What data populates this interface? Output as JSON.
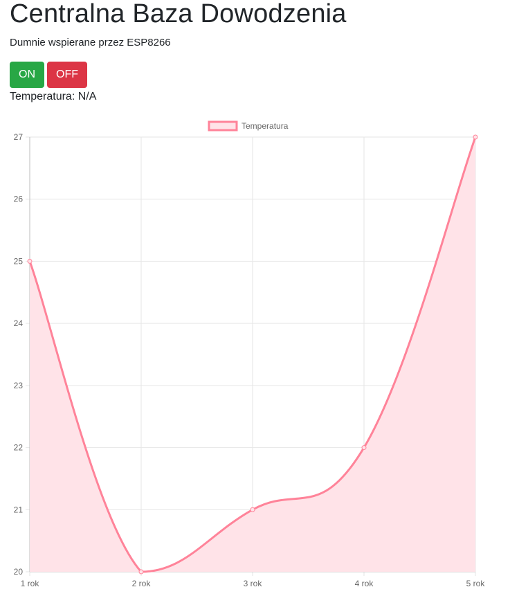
{
  "header": {
    "title": "Centralna Baza Dowodzenia",
    "subtitle": "Dumnie wspierane przez ESP8266"
  },
  "controls": {
    "on_label": "ON",
    "off_label": "OFF",
    "on_color": "#28a745",
    "off_color": "#dc3545"
  },
  "status": {
    "temperature_text": "Temperatura: N/A"
  },
  "chart_data": {
    "type": "line",
    "categories": [
      "1 rok",
      "2 rok",
      "3 rok",
      "4 rok",
      "5 rok"
    ],
    "series": [
      {
        "name": "Temperatura",
        "values": [
          25,
          20,
          21,
          22,
          27
        ],
        "color": "#ff8399",
        "fill": "#ffe3e8"
      }
    ],
    "ylim": [
      20,
      27
    ],
    "yticks": [
      20,
      21,
      22,
      23,
      24,
      25,
      26,
      27
    ],
    "grid": true,
    "legend": "top-center",
    "filled": true,
    "smooth": true
  }
}
